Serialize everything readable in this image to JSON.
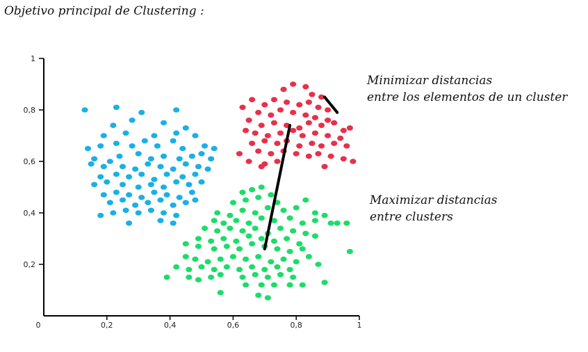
{
  "title": "Objetivo principal de Clustering :",
  "annotations": {
    "minimize": [
      "Minimizar distancias",
      "entre los elementos de un cluster"
    ],
    "maximize": [
      "Maximizar distancias",
      "entre clusters"
    ]
  },
  "chart_data": {
    "type": "scatter",
    "xlim": [
      0,
      1
    ],
    "ylim": [
      0,
      1
    ],
    "x_ticks": [
      "0",
      "0,2",
      "0,4",
      "0,6",
      "0,8",
      "1"
    ],
    "y_ticks": [
      "0,2",
      "0,4",
      "0,6",
      "0,8",
      "1"
    ],
    "grid": false,
    "colors": {
      "blue": "#1ab0e6",
      "red": "#e8304a",
      "green": "#1ddc6a",
      "line": "#000000"
    },
    "series": [
      {
        "color": "blue",
        "points": [
          [
            0.13,
            0.8
          ],
          [
            0.23,
            0.81
          ],
          [
            0.31,
            0.79
          ],
          [
            0.42,
            0.8
          ],
          [
            0.22,
            0.74
          ],
          [
            0.28,
            0.76
          ],
          [
            0.38,
            0.75
          ],
          [
            0.45,
            0.73
          ],
          [
            0.19,
            0.7
          ],
          [
            0.26,
            0.71
          ],
          [
            0.35,
            0.7
          ],
          [
            0.42,
            0.71
          ],
          [
            0.48,
            0.7
          ],
          [
            0.14,
            0.65
          ],
          [
            0.18,
            0.66
          ],
          [
            0.23,
            0.67
          ],
          [
            0.28,
            0.66
          ],
          [
            0.32,
            0.68
          ],
          [
            0.36,
            0.66
          ],
          [
            0.41,
            0.68
          ],
          [
            0.44,
            0.65
          ],
          [
            0.51,
            0.66
          ],
          [
            0.54,
            0.65
          ],
          [
            0.16,
            0.61
          ],
          [
            0.21,
            0.6
          ],
          [
            0.24,
            0.62
          ],
          [
            0.3,
            0.63
          ],
          [
            0.34,
            0.61
          ],
          [
            0.38,
            0.62
          ],
          [
            0.43,
            0.61
          ],
          [
            0.47,
            0.62
          ],
          [
            0.5,
            0.63
          ],
          [
            0.53,
            0.61
          ],
          [
            0.15,
            0.59
          ],
          [
            0.19,
            0.58
          ],
          [
            0.25,
            0.58
          ],
          [
            0.29,
            0.57
          ],
          [
            0.33,
            0.59
          ],
          [
            0.37,
            0.58
          ],
          [
            0.41,
            0.57
          ],
          [
            0.45,
            0.59
          ],
          [
            0.49,
            0.58
          ],
          [
            0.52,
            0.57
          ],
          [
            0.18,
            0.54
          ],
          [
            0.23,
            0.55
          ],
          [
            0.27,
            0.54
          ],
          [
            0.31,
            0.55
          ],
          [
            0.35,
            0.53
          ],
          [
            0.39,
            0.55
          ],
          [
            0.44,
            0.54
          ],
          [
            0.48,
            0.55
          ],
          [
            0.16,
            0.51
          ],
          [
            0.2,
            0.52
          ],
          [
            0.25,
            0.51
          ],
          [
            0.3,
            0.5
          ],
          [
            0.34,
            0.51
          ],
          [
            0.38,
            0.5
          ],
          [
            0.42,
            0.52
          ],
          [
            0.46,
            0.51
          ],
          [
            0.5,
            0.52
          ],
          [
            0.19,
            0.47
          ],
          [
            0.23,
            0.48
          ],
          [
            0.27,
            0.47
          ],
          [
            0.31,
            0.46
          ],
          [
            0.35,
            0.48
          ],
          [
            0.39,
            0.47
          ],
          [
            0.43,
            0.46
          ],
          [
            0.47,
            0.48
          ],
          [
            0.21,
            0.44
          ],
          [
            0.25,
            0.45
          ],
          [
            0.29,
            0.43
          ],
          [
            0.33,
            0.44
          ],
          [
            0.37,
            0.45
          ],
          [
            0.41,
            0.43
          ],
          [
            0.45,
            0.44
          ],
          [
            0.48,
            0.45
          ],
          [
            0.18,
            0.39
          ],
          [
            0.22,
            0.4
          ],
          [
            0.26,
            0.41
          ],
          [
            0.3,
            0.4
          ],
          [
            0.34,
            0.41
          ],
          [
            0.38,
            0.4
          ],
          [
            0.42,
            0.39
          ],
          [
            0.27,
            0.36
          ],
          [
            0.37,
            0.37
          ],
          [
            0.41,
            0.36
          ]
        ]
      },
      {
        "color": "red",
        "points": [
          [
            0.79,
            0.9
          ],
          [
            0.83,
            0.89
          ],
          [
            0.76,
            0.88
          ],
          [
            0.85,
            0.86
          ],
          [
            0.88,
            0.85
          ],
          [
            0.63,
            0.81
          ],
          [
            0.66,
            0.84
          ],
          [
            0.7,
            0.82
          ],
          [
            0.73,
            0.84
          ],
          [
            0.77,
            0.83
          ],
          [
            0.81,
            0.82
          ],
          [
            0.84,
            0.83
          ],
          [
            0.87,
            0.81
          ],
          [
            0.9,
            0.8
          ],
          [
            0.68,
            0.79
          ],
          [
            0.72,
            0.78
          ],
          [
            0.75,
            0.8
          ],
          [
            0.79,
            0.79
          ],
          [
            0.83,
            0.78
          ],
          [
            0.86,
            0.77
          ],
          [
            0.9,
            0.76
          ],
          [
            0.65,
            0.76
          ],
          [
            0.69,
            0.74
          ],
          [
            0.73,
            0.75
          ],
          [
            0.77,
            0.74
          ],
          [
            0.81,
            0.73
          ],
          [
            0.84,
            0.75
          ],
          [
            0.88,
            0.74
          ],
          [
            0.92,
            0.75
          ],
          [
            0.95,
            0.72
          ],
          [
            0.97,
            0.73
          ],
          [
            0.64,
            0.72
          ],
          [
            0.67,
            0.71
          ],
          [
            0.71,
            0.7
          ],
          [
            0.75,
            0.71
          ],
          [
            0.79,
            0.72
          ],
          [
            0.82,
            0.7
          ],
          [
            0.86,
            0.71
          ],
          [
            0.9,
            0.7
          ],
          [
            0.94,
            0.69
          ],
          [
            0.66,
            0.67
          ],
          [
            0.7,
            0.68
          ],
          [
            0.74,
            0.67
          ],
          [
            0.77,
            0.68
          ],
          [
            0.81,
            0.66
          ],
          [
            0.85,
            0.67
          ],
          [
            0.88,
            0.66
          ],
          [
            0.92,
            0.67
          ],
          [
            0.96,
            0.66
          ],
          [
            0.62,
            0.63
          ],
          [
            0.68,
            0.64
          ],
          [
            0.72,
            0.63
          ],
          [
            0.76,
            0.64
          ],
          [
            0.8,
            0.63
          ],
          [
            0.84,
            0.62
          ],
          [
            0.87,
            0.63
          ],
          [
            0.91,
            0.62
          ],
          [
            0.95,
            0.61
          ],
          [
            0.98,
            0.6
          ],
          [
            0.65,
            0.6
          ],
          [
            0.7,
            0.59
          ],
          [
            0.74,
            0.6
          ],
          [
            0.69,
            0.58
          ],
          [
            0.89,
            0.58
          ]
        ]
      },
      {
        "color": "green",
        "points": [
          [
            0.66,
            0.49
          ],
          [
            0.69,
            0.5
          ],
          [
            0.63,
            0.48
          ],
          [
            0.72,
            0.47
          ],
          [
            0.64,
            0.45
          ],
          [
            0.68,
            0.46
          ],
          [
            0.74,
            0.44
          ],
          [
            0.6,
            0.44
          ],
          [
            0.55,
            0.4
          ],
          [
            0.59,
            0.39
          ],
          [
            0.63,
            0.41
          ],
          [
            0.67,
            0.4
          ],
          [
            0.71,
            0.42
          ],
          [
            0.76,
            0.41
          ],
          [
            0.8,
            0.42
          ],
          [
            0.83,
            0.45
          ],
          [
            0.86,
            0.4
          ],
          [
            0.89,
            0.39
          ],
          [
            0.91,
            0.36
          ],
          [
            0.93,
            0.36
          ],
          [
            0.54,
            0.37
          ],
          [
            0.57,
            0.36
          ],
          [
            0.61,
            0.37
          ],
          [
            0.65,
            0.36
          ],
          [
            0.69,
            0.38
          ],
          [
            0.73,
            0.37
          ],
          [
            0.78,
            0.38
          ],
          [
            0.82,
            0.36
          ],
          [
            0.86,
            0.37
          ],
          [
            0.51,
            0.34
          ],
          [
            0.55,
            0.33
          ],
          [
            0.59,
            0.34
          ],
          [
            0.63,
            0.33
          ],
          [
            0.67,
            0.34
          ],
          [
            0.71,
            0.32
          ],
          [
            0.75,
            0.34
          ],
          [
            0.79,
            0.33
          ],
          [
            0.83,
            0.32
          ],
          [
            0.86,
            0.31
          ],
          [
            0.49,
            0.3
          ],
          [
            0.53,
            0.29
          ],
          [
            0.57,
            0.3
          ],
          [
            0.61,
            0.29
          ],
          [
            0.65,
            0.31
          ],
          [
            0.69,
            0.3
          ],
          [
            0.73,
            0.29
          ],
          [
            0.77,
            0.3
          ],
          [
            0.81,
            0.28
          ],
          [
            0.45,
            0.28
          ],
          [
            0.49,
            0.27
          ],
          [
            0.54,
            0.26
          ],
          [
            0.58,
            0.27
          ],
          [
            0.62,
            0.26
          ],
          [
            0.66,
            0.28
          ],
          [
            0.7,
            0.27
          ],
          [
            0.74,
            0.26
          ],
          [
            0.78,
            0.25
          ],
          [
            0.82,
            0.26
          ],
          [
            0.84,
            0.23
          ],
          [
            0.45,
            0.23
          ],
          [
            0.48,
            0.22
          ],
          [
            0.52,
            0.21
          ],
          [
            0.56,
            0.22
          ],
          [
            0.6,
            0.23
          ],
          [
            0.64,
            0.22
          ],
          [
            0.68,
            0.23
          ],
          [
            0.72,
            0.21
          ],
          [
            0.76,
            0.22
          ],
          [
            0.8,
            0.21
          ],
          [
            0.42,
            0.19
          ],
          [
            0.46,
            0.18
          ],
          [
            0.5,
            0.19
          ],
          [
            0.54,
            0.18
          ],
          [
            0.58,
            0.19
          ],
          [
            0.62,
            0.18
          ],
          [
            0.66,
            0.19
          ],
          [
            0.7,
            0.18
          ],
          [
            0.74,
            0.19
          ],
          [
            0.78,
            0.18
          ],
          [
            0.87,
            0.2
          ],
          [
            0.39,
            0.15
          ],
          [
            0.46,
            0.15
          ],
          [
            0.49,
            0.14
          ],
          [
            0.53,
            0.15
          ],
          [
            0.56,
            0.16
          ],
          [
            0.63,
            0.15
          ],
          [
            0.67,
            0.16
          ],
          [
            0.71,
            0.15
          ],
          [
            0.75,
            0.16
          ],
          [
            0.79,
            0.15
          ],
          [
            0.64,
            0.12
          ],
          [
            0.69,
            0.12
          ],
          [
            0.73,
            0.12
          ],
          [
            0.78,
            0.12
          ],
          [
            0.82,
            0.12
          ],
          [
            0.56,
            0.09
          ],
          [
            0.68,
            0.08
          ],
          [
            0.71,
            0.07
          ],
          [
            0.89,
            0.13
          ],
          [
            0.97,
            0.25
          ],
          [
            0.96,
            0.36
          ]
        ]
      }
    ],
    "segments": [
      {
        "name": "intra-cluster-distance",
        "from": [
          0.89,
          0.85
        ],
        "to": [
          0.93,
          0.79
        ]
      },
      {
        "name": "inter-cluster-distance",
        "from": [
          0.7,
          0.26
        ],
        "to": [
          0.78,
          0.74
        ]
      }
    ]
  }
}
